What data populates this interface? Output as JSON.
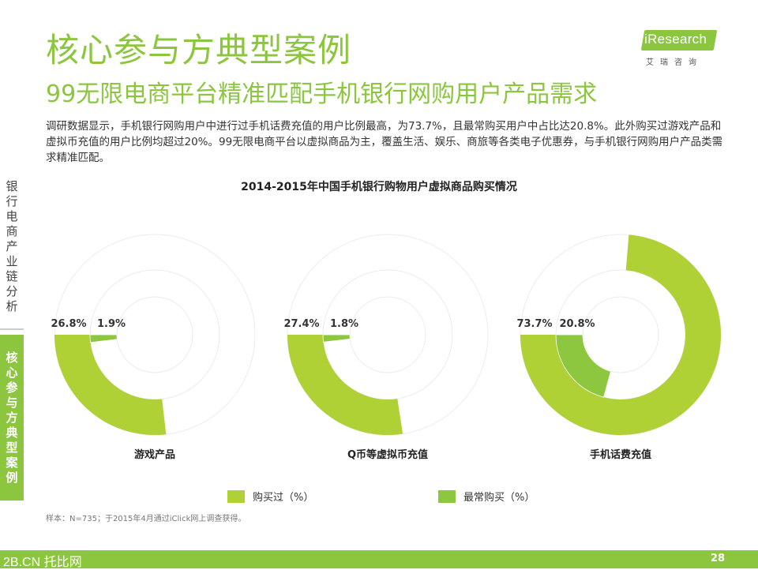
{
  "header": {
    "title": "核心参与方典型案例",
    "subtitle": "99无限电商平台精准匹配手机银行网购用户产品需求"
  },
  "logo": {
    "text": "iResearch",
    "sub": "艾瑞咨询"
  },
  "description": "调研数据显示，手机银行网购用户中进行过手机话费充值的用户比例最高，为73.7%，且最常购买用户中占比达20.8%。此外购买过游戏产品和虚拟币充值的用户比例均超过20%。99无限电商平台以虚拟商品为主，覆盖生活、娱乐、商旅等各类电子优惠券，与手机银行网购用户产品类需求精准匹配。",
  "sidebar": {
    "section_upper": "银行电商产业链分析",
    "section_lower": "核心参与方典型案例"
  },
  "colors": {
    "accent": "#8cc63f",
    "purchased": "#afd136",
    "most_purchased": "#8dc73f",
    "ring_outline": "#ececec"
  },
  "chart_data": {
    "type": "donut",
    "title": "2014-2015年中国手机银行购物用户虚拟商品购买情况",
    "series_names": [
      "购买过（%）",
      "最常购买（%）"
    ],
    "charts": [
      {
        "category": "游戏产品",
        "purchased": 26.8,
        "most_purchased": 1.9,
        "purchased_label": "26.8%",
        "most_purchased_label": "1.9%"
      },
      {
        "category": "Q币等虚拟币充值",
        "purchased": 27.4,
        "most_purchased": 1.8,
        "purchased_label": "27.4%",
        "most_purchased_label": "1.8%"
      },
      {
        "category": "手机话费充值",
        "purchased": 73.7,
        "most_purchased": 20.8,
        "purchased_label": "73.7%",
        "most_purchased_label": "20.8%"
      }
    ]
  },
  "note": "样本：N=735；于2015年4月通过iClick网上调查获得。",
  "footer": {
    "left_text": "2B.CN 托比网",
    "page_number": "28"
  }
}
